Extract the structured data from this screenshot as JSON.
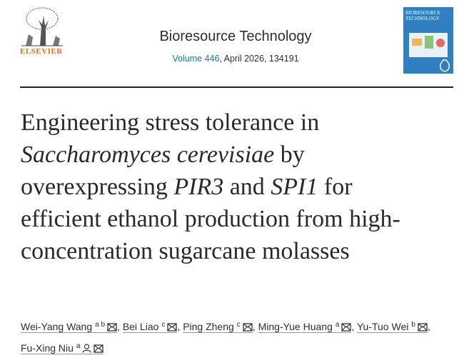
{
  "header": {
    "publisher": "ELSEVIER",
    "journal": "Bioresource Technology",
    "volume": "Volume 446",
    "issue_info": ", April 2026, 134191",
    "cover_title": "BIORESOURCE TECHNOLOGY"
  },
  "article": {
    "title": [
      {
        "text": "Engineering stress tolerance in ",
        "italic": false
      },
      {
        "text": "Saccharomyces cerevisiae",
        "italic": true
      },
      {
        "text": " by overexpressing ",
        "italic": false
      },
      {
        "text": "PIR3",
        "italic": true
      },
      {
        "text": " and ",
        "italic": false
      },
      {
        "text": "SPI1",
        "italic": true
      },
      {
        "text": " for efficient ethanol production from high-concentration sugarcane molasses",
        "italic": false
      }
    ],
    "author_separator": ",",
    "authors": [
      {
        "name": "Wei-Yang Wang",
        "affiliations": [
          "a",
          "b"
        ],
        "corresponding": false
      },
      {
        "name": "Bei Liao",
        "affiliations": [
          "c"
        ],
        "corresponding": false
      },
      {
        "name": "Ping Zheng",
        "affiliations": [
          "c"
        ],
        "corresponding": false
      },
      {
        "name": "Ming-Yue Huang",
        "affiliations": [
          "a"
        ],
        "corresponding": false
      },
      {
        "name": "Yu-Tuo Wei",
        "affiliations": [
          "b"
        ],
        "corresponding": false
      },
      {
        "name": "Fu-Xing Niu",
        "affiliations": [
          "a"
        ],
        "corresponding": true
      }
    ]
  }
}
